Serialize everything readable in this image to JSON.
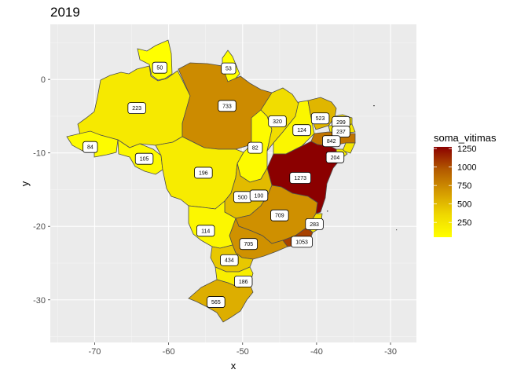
{
  "title": "2019",
  "chart_data": {
    "type": "choropleth",
    "title": "2019",
    "xlabel": "x",
    "ylabel": "y",
    "xlim": [
      -76,
      -26.5
    ],
    "ylim": [
      -35.8,
      7.5
    ],
    "x_ticks": [
      -70,
      -60,
      -50,
      -40,
      -30
    ],
    "y_ticks": [
      0,
      -10,
      -20,
      -30
    ],
    "x_tick_labels": [
      "-70",
      "-60",
      "-50",
      "-40",
      "-30"
    ],
    "y_tick_labels": [
      "0",
      "-10",
      "-20",
      "-30"
    ],
    "grid": true,
    "legend": {
      "title": "soma_vitimas",
      "position": "right",
      "min": 50,
      "max": 1273,
      "ticks": [
        250,
        500,
        750,
        1000,
        1250
      ],
      "tick_labels": [
        "250",
        "500",
        "750",
        "1000",
        "1250"
      ],
      "colors": [
        "#ffff00",
        "#efd800",
        "#d49a00",
        "#b35a00",
        "#8b0000"
      ]
    },
    "regions": [
      {
        "value": 50,
        "label": "50",
        "lx": -61.2,
        "ly": 1.6
      },
      {
        "value": 53,
        "label": "53",
        "lx": -51.9,
        "ly": 1.5
      },
      {
        "value": 223,
        "label": "223",
        "lx": -64.3,
        "ly": -3.9
      },
      {
        "value": 733,
        "label": "733",
        "lx": -52.1,
        "ly": -3.6
      },
      {
        "value": 84,
        "label": "84",
        "lx": -70.6,
        "ly": -9.2
      },
      {
        "value": 105,
        "label": "105",
        "lx": -63.3,
        "ly": -10.8
      },
      {
        "value": 196,
        "label": "196",
        "lx": -55.3,
        "ly": -12.7
      },
      {
        "value": 82,
        "label": "82",
        "lx": -48.3,
        "ly": -9.3
      },
      {
        "value": 320,
        "label": "320",
        "lx": -45.3,
        "ly": -5.7
      },
      {
        "value": 124,
        "label": "124",
        "lx": -42.0,
        "ly": -6.9
      },
      {
        "value": 523,
        "label": "523",
        "lx": -39.5,
        "ly": -5.3
      },
      {
        "value": 299,
        "label": "299",
        "lx": -36.7,
        "ly": -5.8
      },
      {
        "value": 237,
        "label": "237",
        "lx": -36.7,
        "ly": -7.1
      },
      {
        "value": 842,
        "label": "842",
        "lx": -38.0,
        "ly": -8.4
      },
      {
        "value": 204,
        "label": "204",
        "lx": -37.5,
        "ly": -10.6
      },
      {
        "value": 1273,
        "label": "1273",
        "lx": -42.2,
        "ly": -13.4
      },
      {
        "value": 500,
        "label": "500",
        "lx": -50.0,
        "ly": -16.0
      },
      {
        "value": 100,
        "label": "100",
        "lx": -47.8,
        "ly": -15.8
      },
      {
        "value": 709,
        "label": "709",
        "lx": -45.0,
        "ly": -18.5
      },
      {
        "value": 283,
        "label": "283",
        "lx": -40.3,
        "ly": -19.7
      },
      {
        "value": 114,
        "label": "114",
        "lx": -55.0,
        "ly": -20.6
      },
      {
        "value": 705,
        "label": "705",
        "lx": -49.2,
        "ly": -22.4
      },
      {
        "value": 1053,
        "label": "1053",
        "lx": -42.0,
        "ly": -22.1
      },
      {
        "value": 434,
        "label": "434",
        "lx": -51.8,
        "ly": -24.6
      },
      {
        "value": 186,
        "label": "186",
        "lx": -49.9,
        "ly": -27.5
      },
      {
        "value": 565,
        "label": "565",
        "lx": -53.6,
        "ly": -30.3
      }
    ]
  }
}
